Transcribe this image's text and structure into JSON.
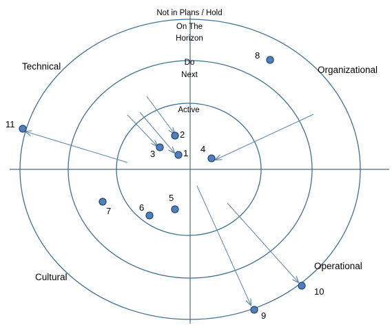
{
  "rings": {
    "outer": "Not in Plans / Hold",
    "third_line1": "On The",
    "third_line2": "Horizon",
    "second_line1": "Do",
    "second_line2": "Next",
    "inner": "Active"
  },
  "quadrants": {
    "top_left": "Technical",
    "top_right": "Organizational",
    "bottom_left": "Cultural",
    "bottom_right": "Operational"
  },
  "items": [
    "1",
    "2",
    "3",
    "4",
    "5",
    "6",
    "7",
    "8",
    "9",
    "10",
    "11"
  ],
  "colors": {
    "ring": "#3f6f8f",
    "axis": "#4a6a85",
    "arrow": "#5a85a8",
    "dot_fill": "#4f7fbf",
    "dot_stroke": "#2a4a6e"
  }
}
